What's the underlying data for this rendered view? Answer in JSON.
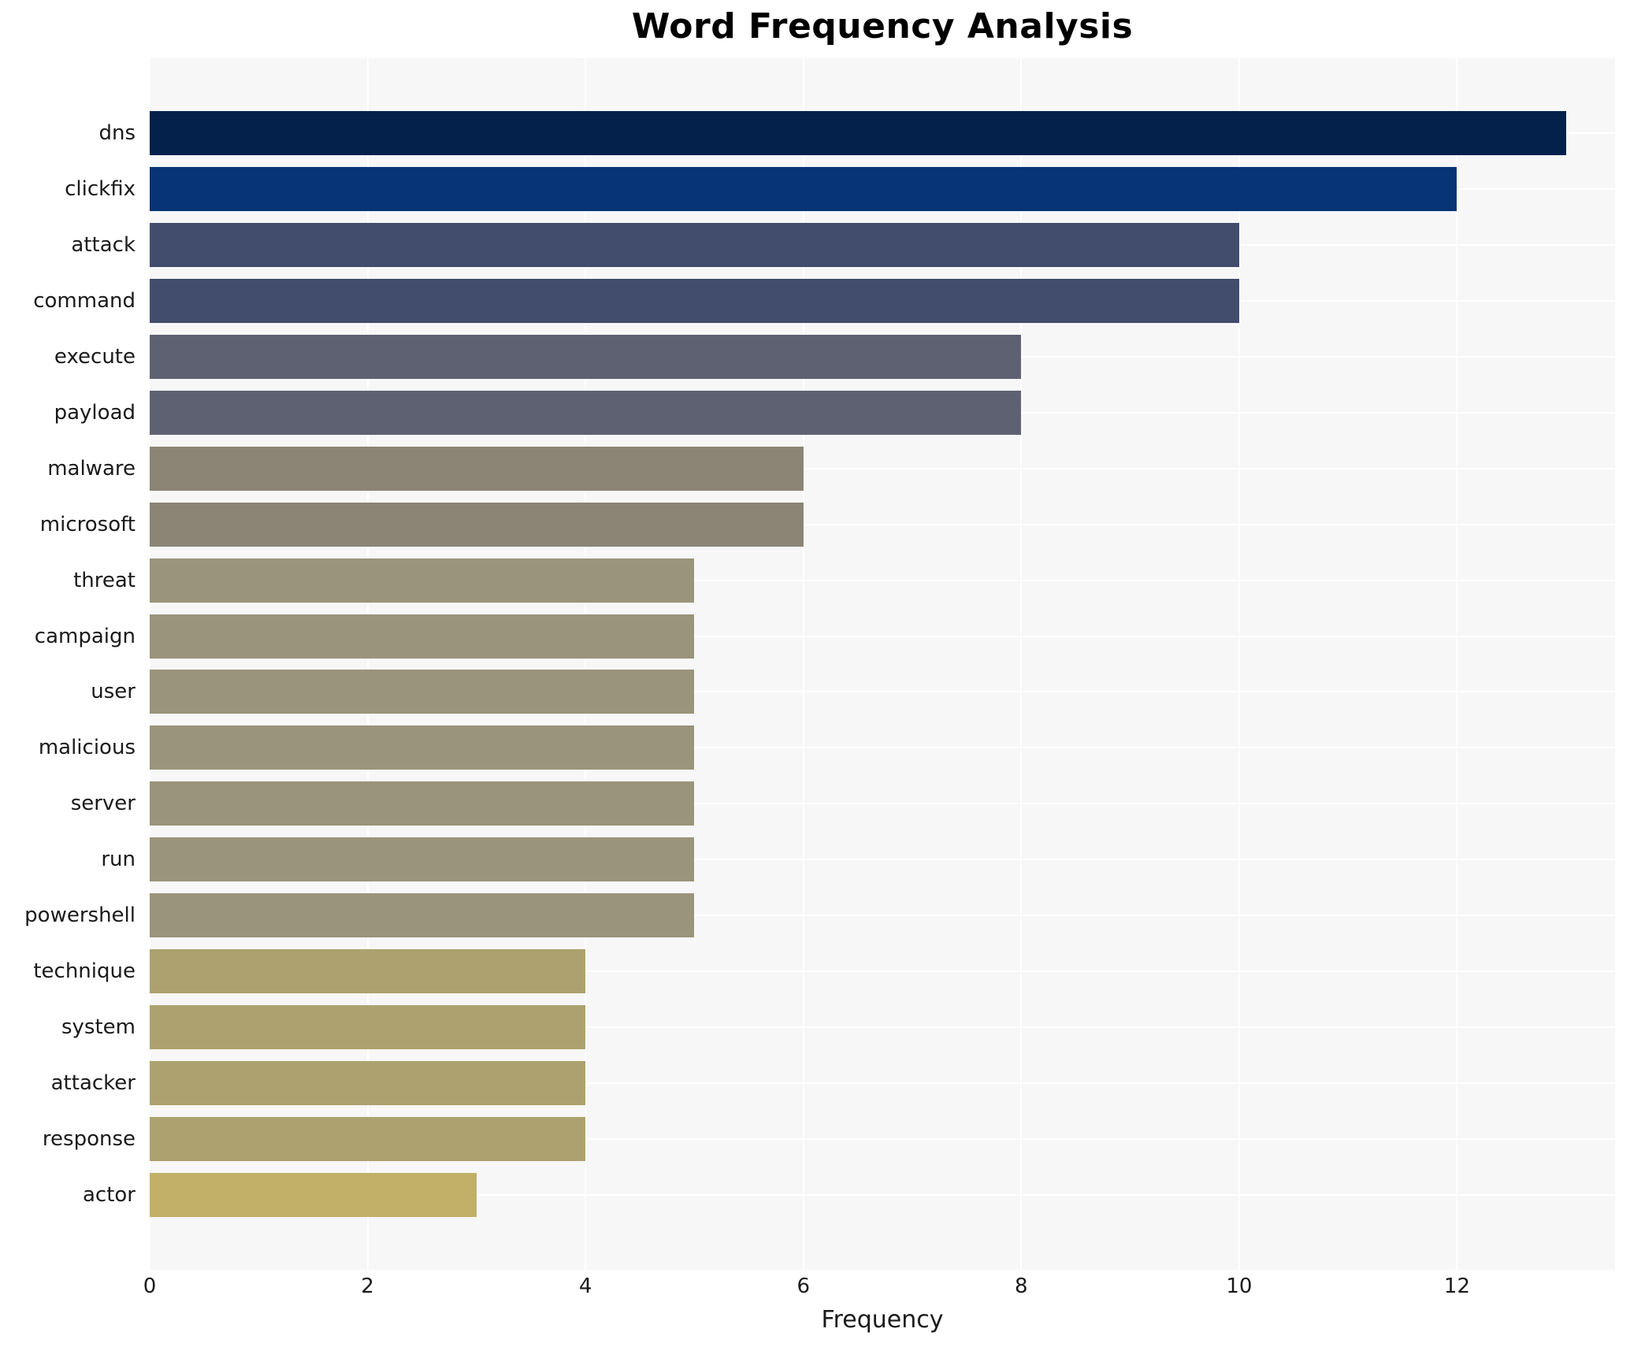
{
  "chart_data": {
    "type": "bar",
    "orientation": "horizontal",
    "title": "Word Frequency Analysis",
    "xlabel": "Frequency",
    "ylabel": "",
    "categories": [
      "dns",
      "clickfix",
      "attack",
      "command",
      "execute",
      "payload",
      "malware",
      "microsoft",
      "threat",
      "campaign",
      "user",
      "malicious",
      "server",
      "run",
      "powershell",
      "technique",
      "system",
      "attacker",
      "response",
      "actor"
    ],
    "values": [
      13,
      12,
      10,
      10,
      8,
      8,
      6,
      6,
      5,
      5,
      5,
      5,
      5,
      5,
      5,
      4,
      4,
      4,
      4,
      3
    ],
    "bar_colors": [
      "#04214c",
      "#063474",
      "#424d6d",
      "#424d6d",
      "#5e6171",
      "#5e6171",
      "#8a8575",
      "#8a8575",
      "#9a947a",
      "#9a947a",
      "#9a947a",
      "#9a947a",
      "#9a947a",
      "#9a947a",
      "#9a947a",
      "#ada26f",
      "#ada26f",
      "#ada26f",
      "#ada26f",
      "#c2b068"
    ],
    "xticks": [
      "0",
      "2",
      "4",
      "6",
      "8",
      "10",
      "12"
    ],
    "xtick_values": [
      0,
      2,
      4,
      6,
      8,
      10,
      12
    ],
    "xlim": [
      0,
      13.45
    ],
    "grid": true,
    "legend": false,
    "plot_bg_color": "#f7f7f7",
    "grid_color": "#ffffff",
    "text_color": "#1a1a1a"
  }
}
